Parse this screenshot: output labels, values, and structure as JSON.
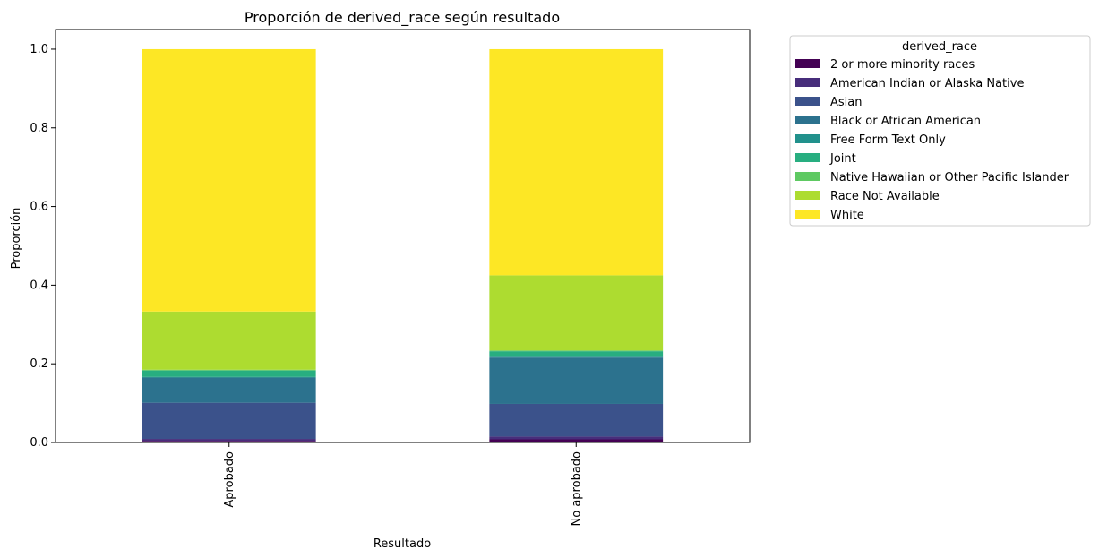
{
  "chart_data": {
    "type": "bar",
    "stacked": true,
    "title": "Proporción de derived_race según resultado",
    "xlabel": "Resultado",
    "ylabel": "Proporción",
    "ylim": [
      0,
      1.05
    ],
    "yticks": [
      0.0,
      0.2,
      0.4,
      0.6,
      0.8,
      1.0
    ],
    "yticklabels": [
      "0.0",
      "0.2",
      "0.4",
      "0.6",
      "0.8",
      "1.0"
    ],
    "categories": [
      "Aprobado",
      "No aprobado"
    ],
    "grid": false,
    "legend": {
      "title": "derived_race",
      "placement": "outside-right"
    },
    "series": [
      {
        "name": "2 or more minority races",
        "color": "#440154",
        "values": [
          0.004,
          0.008
        ]
      },
      {
        "name": "American Indian or Alaska Native",
        "color": "#472d7b",
        "values": [
          0.005,
          0.007
        ]
      },
      {
        "name": "Asian",
        "color": "#3b528b",
        "values": [
          0.092,
          0.083
        ]
      },
      {
        "name": "Black or African American",
        "color": "#2c728e",
        "values": [
          0.064,
          0.118
        ]
      },
      {
        "name": "Free Form Text Only",
        "color": "#21918c",
        "values": [
          0.002,
          0.002
        ]
      },
      {
        "name": "Joint",
        "color": "#28ae80",
        "values": [
          0.016,
          0.014
        ]
      },
      {
        "name": "Native Hawaiian or Other Pacific Islander",
        "color": "#5ec962",
        "values": [
          0.002,
          0.002
        ]
      },
      {
        "name": "Race Not Available",
        "color": "#addc30",
        "values": [
          0.148,
          0.191
        ]
      },
      {
        "name": "White",
        "color": "#fde725",
        "values": [
          0.667,
          0.575
        ]
      }
    ]
  }
}
